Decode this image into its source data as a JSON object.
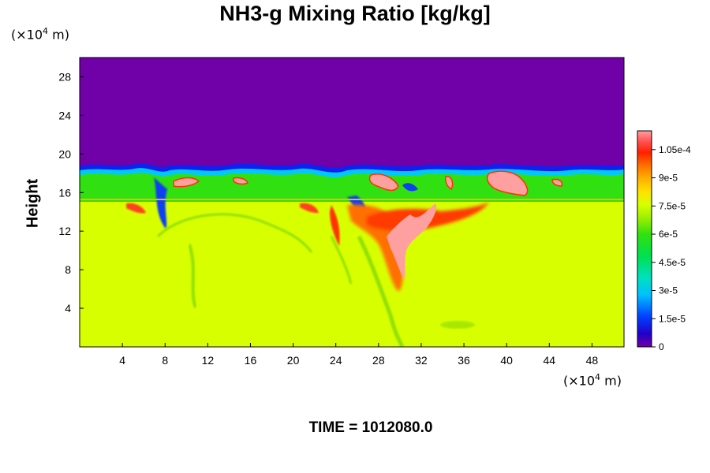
{
  "chart_data": {
    "type": "heatmap",
    "title": "NH3-g Mixing Ratio [kg/kg]",
    "ylabel": "Height",
    "xlabel": "",
    "x_unit": "(×10⁴ m)",
    "y_unit": "(×10⁴ m)",
    "x_ticks": [
      4,
      8,
      12,
      16,
      20,
      24,
      28,
      32,
      36,
      40,
      44,
      48
    ],
    "y_ticks": [
      4,
      8,
      12,
      16,
      20,
      24,
      28
    ],
    "xlim": [
      0,
      51
    ],
    "ylim": [
      0,
      30
    ],
    "colorbar": {
      "min": 0,
      "max": 0.000115,
      "tick_labels": [
        "0",
        "1.5e-5",
        "3e-5",
        "4.5e-5",
        "6e-5",
        "7.5e-5",
        "9e-5",
        "1.05e-4"
      ],
      "tick_values": [
        0,
        1.5e-05,
        3e-05,
        4.5e-05,
        6e-05,
        7.5e-05,
        9e-05,
        0.000105
      ]
    },
    "regions": {
      "upper_layer": {
        "y_range": [
          18.5,
          30
        ],
        "value": 0
      },
      "lower_layer": {
        "y_range": [
          0,
          15
        ],
        "value": 7.5e-05
      },
      "mixing_band": {
        "y_range": [
          14,
          18.5
        ],
        "value": 5.2e-05
      }
    },
    "time_label": "TIME = 1012080.0"
  }
}
